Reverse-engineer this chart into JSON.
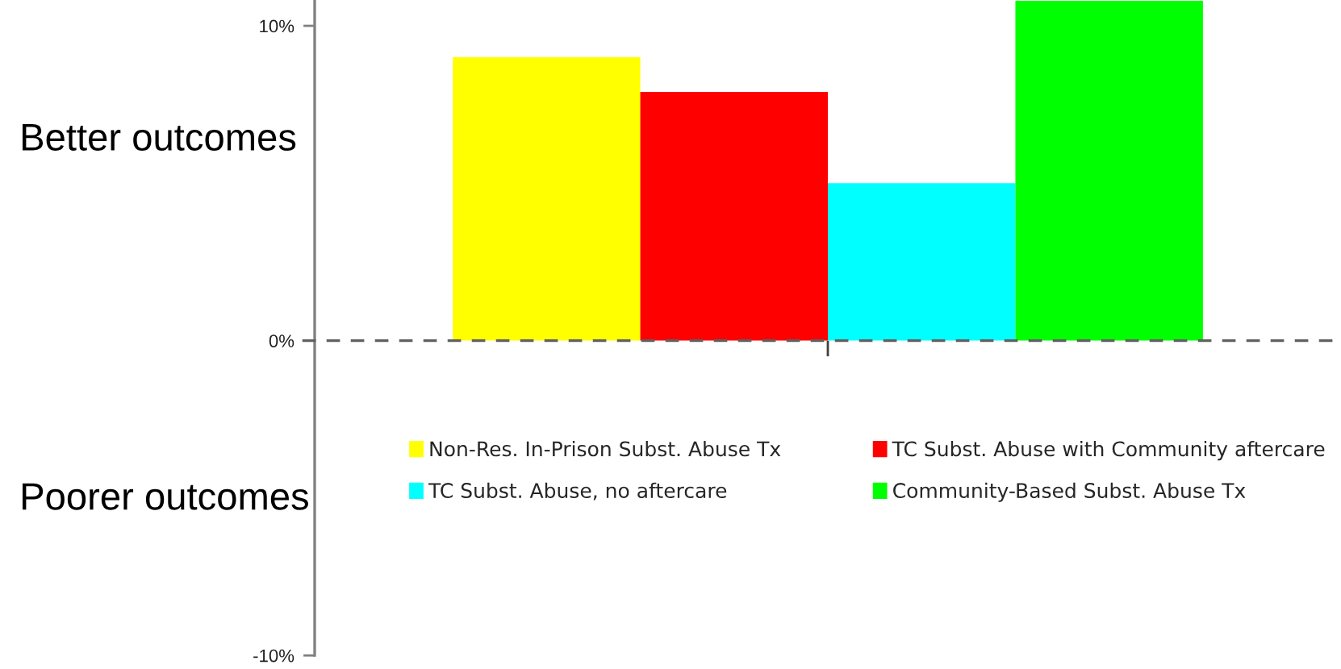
{
  "chart_data": {
    "type": "bar",
    "categories": [
      null
    ],
    "series": [
      {
        "name": "Non-Res. In-Prison Subst. Abuse Tx",
        "color": "#ffff00",
        "values": [
          9.0
        ]
      },
      {
        "name": "TC Subst. Abuse with Community aftercare",
        "color": "#ff0000",
        "values": [
          7.9
        ]
      },
      {
        "name": "TC Subst. Abuse, no aftercare",
        "color": "#00ffff",
        "values": [
          5.0
        ]
      },
      {
        "name": "Community-Based Subst. Abuse Tx",
        "color": "#00ff00",
        "values": [
          10.8
        ]
      }
    ],
    "ylim": [
      -10,
      10.8
    ],
    "yticks": [
      {
        "value": -10,
        "label": "-10%"
      },
      {
        "value": 0,
        "label": "0%"
      },
      {
        "value": 10,
        "label": "10%"
      }
    ],
    "ref_lines": [
      {
        "axis": "y",
        "value": 0,
        "line_style": "dashed",
        "color": "#606060"
      }
    ],
    "annotations": [
      "Better outcomes",
      "Poorer outcomes"
    ],
    "legend": "bottom",
    "tick_labels": "y"
  }
}
